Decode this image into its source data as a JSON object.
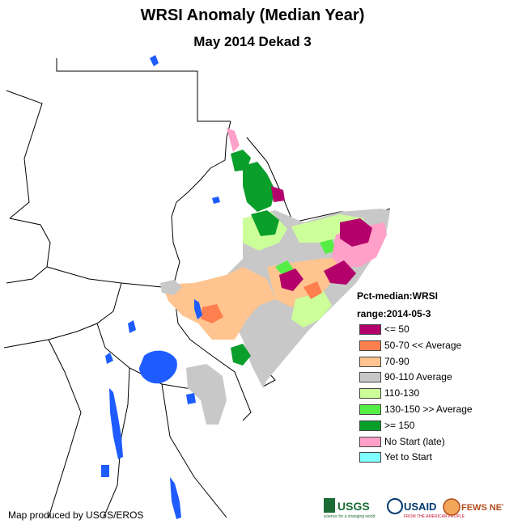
{
  "title": "WRSI Anomaly (Median Year)",
  "subtitle": "May 2014 Dekad 3",
  "legend": {
    "heading_1": "Pct-median:WRSI",
    "heading_2": "range:2014-05-3",
    "items": [
      {
        "label": "<= 50",
        "color": "#b3006b"
      },
      {
        "label": "50-70 << Average",
        "color": "#ff7f4f"
      },
      {
        "label": "70-90",
        "color": "#ffc48f"
      },
      {
        "label": "90-110 Average",
        "color": "#c8c8c8"
      },
      {
        "label": "110-130",
        "color": "#ccff99"
      },
      {
        "label": "130-150 >> Average",
        "color": "#55ee44"
      },
      {
        "label": ">= 150",
        "color": "#0a9e2a"
      },
      {
        "label": "No Start (late)",
        "color": "#ffa0c8"
      },
      {
        "label": "Yet to Start",
        "color": "#80ffff"
      }
    ]
  },
  "footer": "Map produced by USGS/EROS",
  "logos": {
    "usgs": "USGS",
    "usgs_tagline": "science for a changing world",
    "usaid": "USAID",
    "usaid_tagline": "FROM THE AMERICAN PEOPLE",
    "fewsnet": "FEWS NET"
  },
  "water_color": "#1e5cff"
}
